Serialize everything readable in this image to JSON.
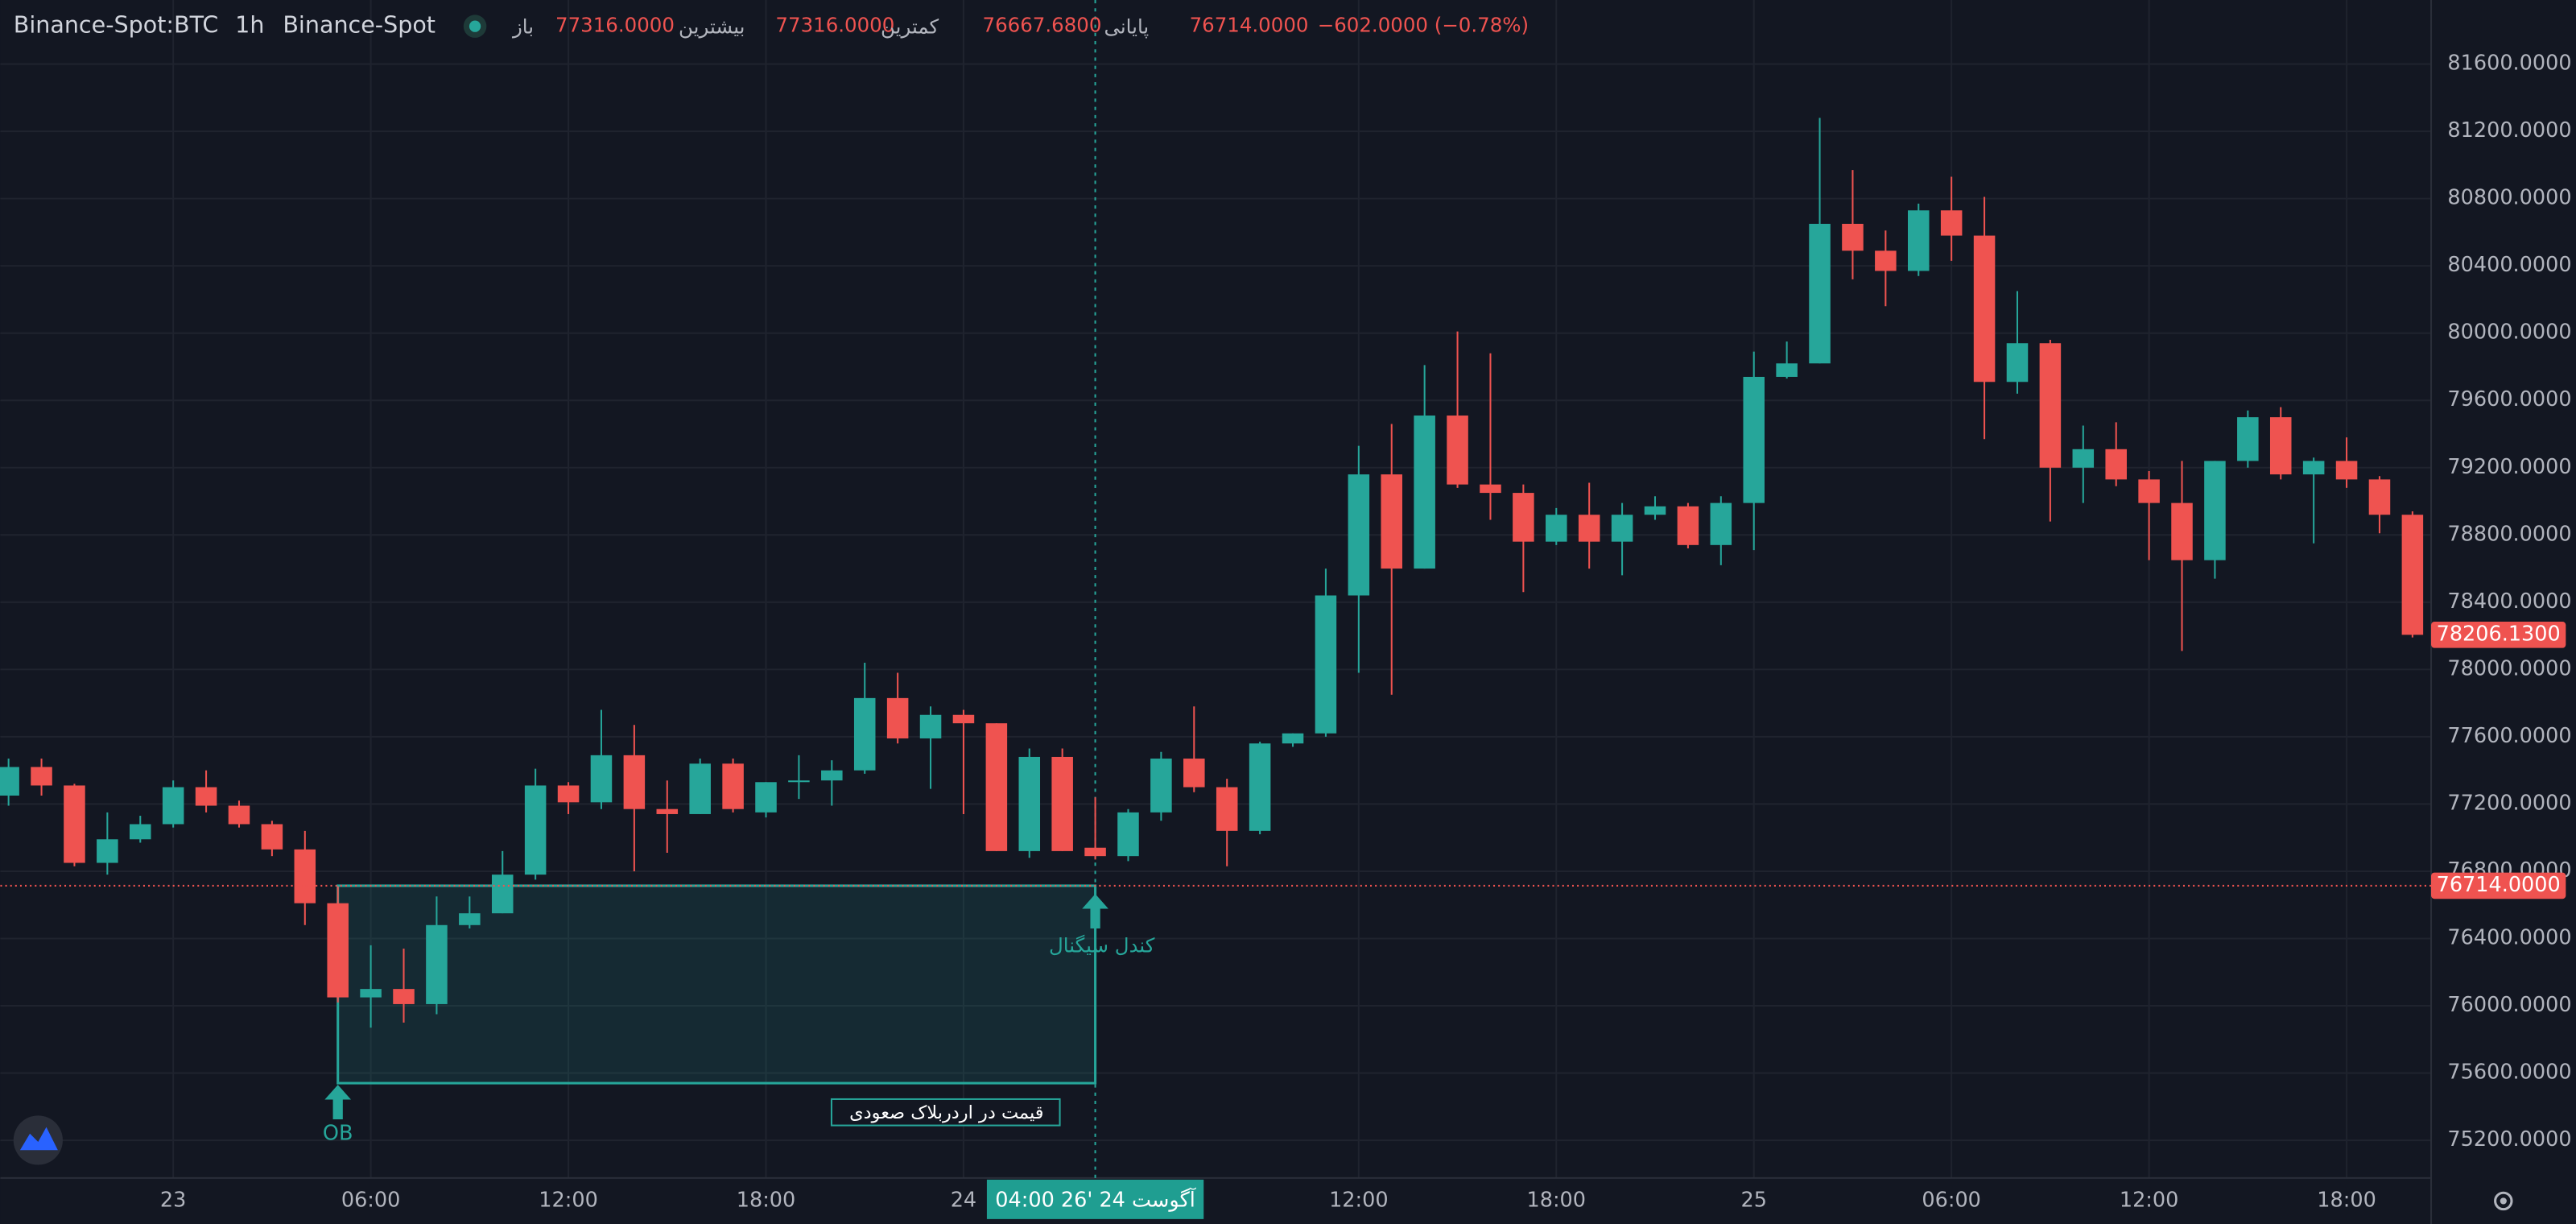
{
  "header": {
    "symbol": "Binance-Spot:BTC",
    "interval": "1h",
    "exchange": "Binance-Spot",
    "ohlc": [
      {
        "label": "باز",
        "value": "77316.0000"
      },
      {
        "label": "بیشترین",
        "value": "77316.0000"
      },
      {
        "label": "کمترین",
        "value": "76667.6800"
      },
      {
        "label": "پایانی",
        "value": "76714.0000"
      }
    ],
    "change": "−602.0000 (−0.78%)"
  },
  "chart_data": {
    "type": "candlestick",
    "categories": [
      null,
      null,
      null,
      null,
      null,
      "23",
      null,
      null,
      null,
      null,
      null,
      "06:00",
      null,
      null,
      null,
      null,
      null,
      "12:00",
      null,
      null,
      null,
      null,
      null,
      "18:00",
      null,
      null,
      null,
      null,
      null,
      "24",
      null,
      null,
      null,
      null,
      null,
      null,
      null,
      null,
      null,
      null,
      null,
      "12:00",
      null,
      null,
      null,
      null,
      null,
      "18:00",
      null,
      null,
      null,
      null,
      null,
      "25",
      null,
      null,
      null,
      null,
      null,
      "06:00",
      null,
      null,
      null,
      null,
      null,
      "12:00",
      null,
      null,
      null,
      null,
      null,
      "18:00",
      null,
      null
    ],
    "open": [
      77250,
      77420,
      77310,
      76850,
      76990,
      77080,
      77300,
      77190,
      77080,
      76930,
      76610,
      76050,
      76100,
      76010,
      76480,
      76550,
      76780,
      77310,
      77210,
      77490,
      77170,
      77140,
      77440,
      77150,
      77330,
      77340,
      77400,
      77830,
      77590,
      77730,
      77680,
      76920,
      77480,
      76940,
      76890,
      77150,
      77470,
      77300,
      77040,
      77560,
      77620,
      78440,
      79160,
      78600,
      79510,
      79100,
      79050,
      78760,
      78920,
      78760,
      78920,
      78970,
      78740,
      78990,
      79740,
      79820,
      80650,
      80490,
      80370,
      80730,
      80580,
      79710,
      79940,
      79200,
      79310,
      79130,
      78990,
      78650,
      79240,
      79500,
      79160,
      79240,
      79130,
      78920
    ],
    "high": [
      77470,
      77470,
      77320,
      77150,
      77130,
      77340,
      77400,
      77220,
      77100,
      77040,
      76710,
      76360,
      76340,
      76650,
      76650,
      76920,
      77410,
      77330,
      77760,
      77670,
      77340,
      77470,
      77470,
      77330,
      77490,
      77460,
      78040,
      77980,
      77780,
      77760,
      77680,
      77530,
      77530,
      77240,
      77170,
      77510,
      77780,
      77350,
      77570,
      77620,
      78600,
      79330,
      79460,
      79810,
      80010,
      79880,
      79100,
      78960,
      79110,
      78990,
      79030,
      78990,
      79030,
      79890,
      79950,
      81280,
      80970,
      80610,
      80770,
      80930,
      80810,
      80250,
      79960,
      79450,
      79470,
      79180,
      79240,
      79240,
      79540,
      79560,
      79260,
      79380,
      79150,
      78940
    ],
    "low": [
      77190,
      77250,
      76830,
      76780,
      76970,
      77060,
      77150,
      77060,
      76890,
      76480,
      76020,
      75870,
      75900,
      75950,
      76460,
      76550,
      76750,
      77140,
      77170,
      76800,
      76910,
      77140,
      77150,
      77120,
      77230,
      77190,
      77380,
      77560,
      77290,
      77140,
      76920,
      76880,
      76920,
      76870,
      76860,
      77100,
      77270,
      76830,
      77020,
      77540,
      77600,
      77980,
      77850,
      78600,
      79080,
      78890,
      78460,
      78740,
      78600,
      78560,
      78890,
      78720,
      78620,
      78710,
      79730,
      79820,
      80320,
      80160,
      80340,
      80430,
      79370,
      79640,
      78880,
      78990,
      79090,
      78650,
      78110,
      78540,
      79200,
      79130,
      78750,
      79080,
      78810,
      78190
    ],
    "close": [
      77420,
      77310,
      76850,
      76990,
      77080,
      77300,
      77190,
      77080,
      76930,
      76610,
      76050,
      76100,
      76010,
      76480,
      76550,
      76780,
      77310,
      77210,
      77490,
      77170,
      77140,
      77440,
      77170,
      77330,
      77340,
      77400,
      77830,
      77590,
      77730,
      77680,
      76920,
      77480,
      76920,
      76890,
      77150,
      77470,
      77300,
      77040,
      77560,
      77620,
      78440,
      79160,
      78600,
      79510,
      79100,
      79050,
      78760,
      78920,
      78760,
      78920,
      78970,
      78740,
      78990,
      79740,
      79820,
      80650,
      80490,
      80370,
      80730,
      80580,
      79710,
      79940,
      79200,
      79310,
      79130,
      78990,
      78650,
      79240,
      79500,
      79160,
      79240,
      79130,
      78920,
      78206.13
    ],
    "up_color": "#26a69a",
    "down_color": "#ef5350",
    "ylim": [
      74976,
      81981
    ],
    "yticks": [
      {
        "value": 81600,
        "label": "81600.0000"
      },
      {
        "value": 81200,
        "label": "81200.0000"
      },
      {
        "value": 80800,
        "label": "80800.0000"
      },
      {
        "value": 80400,
        "label": "80400.0000"
      },
      {
        "value": 80000,
        "label": "80000.0000"
      },
      {
        "value": 79600,
        "label": "79600.0000"
      },
      {
        "value": 79200,
        "label": "79200.0000"
      },
      {
        "value": 78800,
        "label": "78800.0000"
      },
      {
        "value": 78400,
        "label": "78400.0000"
      },
      {
        "value": 78000,
        "label": "78000.0000"
      },
      {
        "value": 77600,
        "label": "77600.0000"
      },
      {
        "value": 77200,
        "label": "77200.0000"
      },
      {
        "value": 76800,
        "label": "76800.0000"
      },
      {
        "value": 76400,
        "label": "76400.0000"
      },
      {
        "value": 76000,
        "label": "76000.0000"
      },
      {
        "value": 75600,
        "label": "75600.0000"
      },
      {
        "value": 75200,
        "label": "75200.0000"
      }
    ],
    "grid": true,
    "last_price": {
      "value": 78206.13,
      "label": "78206.1300"
    },
    "price_line": {
      "value": 76714,
      "label": "76714.0000"
    },
    "crosshair": {
      "at": 33,
      "label": "04:00  26' آگوست 24"
    },
    "zone": {
      "from": 10,
      "to": 33,
      "high": 76714,
      "low": 75540,
      "label": "قیمت در اردربلاک صعودی"
    },
    "annotations": [
      {
        "text": "OB",
        "at": 10
      },
      {
        "text": "کندل سیگنال",
        "at": 33
      }
    ]
  }
}
